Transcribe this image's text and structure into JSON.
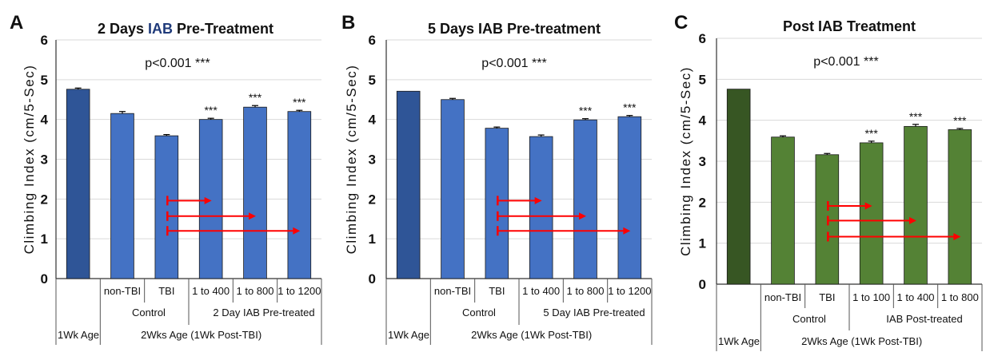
{
  "colors": {
    "A": {
      "first": "#2f5597",
      "rest": "#4472c4",
      "title_highlight": "#1f3a7a"
    },
    "B": {
      "first": "#2f5597",
      "rest": "#4472c4",
      "title_highlight": "#1f3a7a"
    },
    "C": {
      "first": "#375623",
      "rest": "#548235",
      "title_highlight": "#375623"
    },
    "arrow": "#ff0000",
    "grid": "#d9d9d9"
  },
  "chart_data": [
    {
      "type": "bar",
      "panel_letter": "A",
      "title_parts": [
        "2 Days ",
        "IAB",
        " Pre-Treatment"
      ],
      "title_highlight_index": 1,
      "ylabel": "Climbing Index (cm/5-Sec)",
      "ylim": [
        0,
        6
      ],
      "yticks": [
        "0",
        "1",
        "2",
        "3",
        "4",
        "5",
        "6"
      ],
      "pvalue": "p<0.001 ***",
      "values": [
        4.76,
        4.15,
        3.59,
        4.0,
        4.31,
        4.2
      ],
      "errors": [
        0.03,
        0.05,
        0.03,
        0.03,
        0.04,
        0.03
      ],
      "significance": [
        "",
        "",
        "",
        "***",
        "***",
        "***"
      ],
      "categories": [
        "",
        "non-TBI",
        "TBI",
        "1 to 400",
        "1 to 800",
        "1 to 1200"
      ],
      "groups": [
        "Control",
        "2 Day   IAB   Pre-treated"
      ],
      "age_labels": [
        "1Wk Age",
        "2Wks Age (1Wk Post-TBI)"
      ],
      "arrows": [
        [
          2,
          3,
          1.96
        ],
        [
          2,
          4,
          1.57
        ],
        [
          2,
          5,
          1.2
        ]
      ]
    },
    {
      "type": "bar",
      "panel_letter": "B",
      "title_parts": [
        "5 Days IAB Pre-treatment"
      ],
      "title_highlight_index": -1,
      "ylabel": "Climbing Index (cm/5-Sec)",
      "ylim": [
        0,
        6
      ],
      "yticks": [
        "0",
        "1",
        "2",
        "3",
        "4",
        "5",
        "6"
      ],
      "pvalue": "p<0.001 ***",
      "values": [
        4.71,
        4.5,
        3.78,
        3.57,
        3.99,
        4.07
      ],
      "errors": [
        0.0,
        0.03,
        0.03,
        0.04,
        0.03,
        0.03
      ],
      "significance": [
        "",
        "",
        "",
        "",
        "***",
        "***"
      ],
      "categories": [
        "",
        "non-TBI",
        "TBI",
        "1 to 400",
        "1 to 800",
        "1 to 1200"
      ],
      "groups": [
        "Control",
        "5 Day   IAB   Pre-treated"
      ],
      "age_labels": [
        "1Wk Age",
        "2Wks Age (1Wk Post-TBI)"
      ],
      "arrows": [
        [
          2,
          3,
          1.96
        ],
        [
          2,
          4,
          1.57
        ],
        [
          2,
          5,
          1.2
        ]
      ]
    },
    {
      "type": "bar",
      "panel_letter": "C",
      "title_parts": [
        "Post IAB Treatment"
      ],
      "title_highlight_index": -1,
      "ylabel": "Climbing Index (cm/5-Sec)",
      "ylim": [
        0,
        6
      ],
      "yticks": [
        "0",
        "1",
        "2",
        "3",
        "4",
        "5",
        "6"
      ],
      "pvalue": "p<0.001 ***",
      "values": [
        4.76,
        3.59,
        3.16,
        3.45,
        3.85,
        3.77
      ],
      "errors": [
        0.0,
        0.03,
        0.03,
        0.04,
        0.05,
        0.03
      ],
      "significance": [
        "",
        "",
        "",
        "***",
        "***",
        "***"
      ],
      "categories": [
        "",
        "non-TBI",
        "TBI",
        "1 to 100",
        "1 to 400",
        "1 to 800"
      ],
      "groups": [
        "Control",
        "IAB   Post-treated"
      ],
      "age_labels": [
        "1Wk Age",
        "2Wks Age (1Wk Post-TBI)"
      ],
      "arrows": [
        [
          2,
          3,
          1.91
        ],
        [
          2,
          4,
          1.55
        ],
        [
          2,
          5,
          1.16
        ]
      ]
    }
  ]
}
